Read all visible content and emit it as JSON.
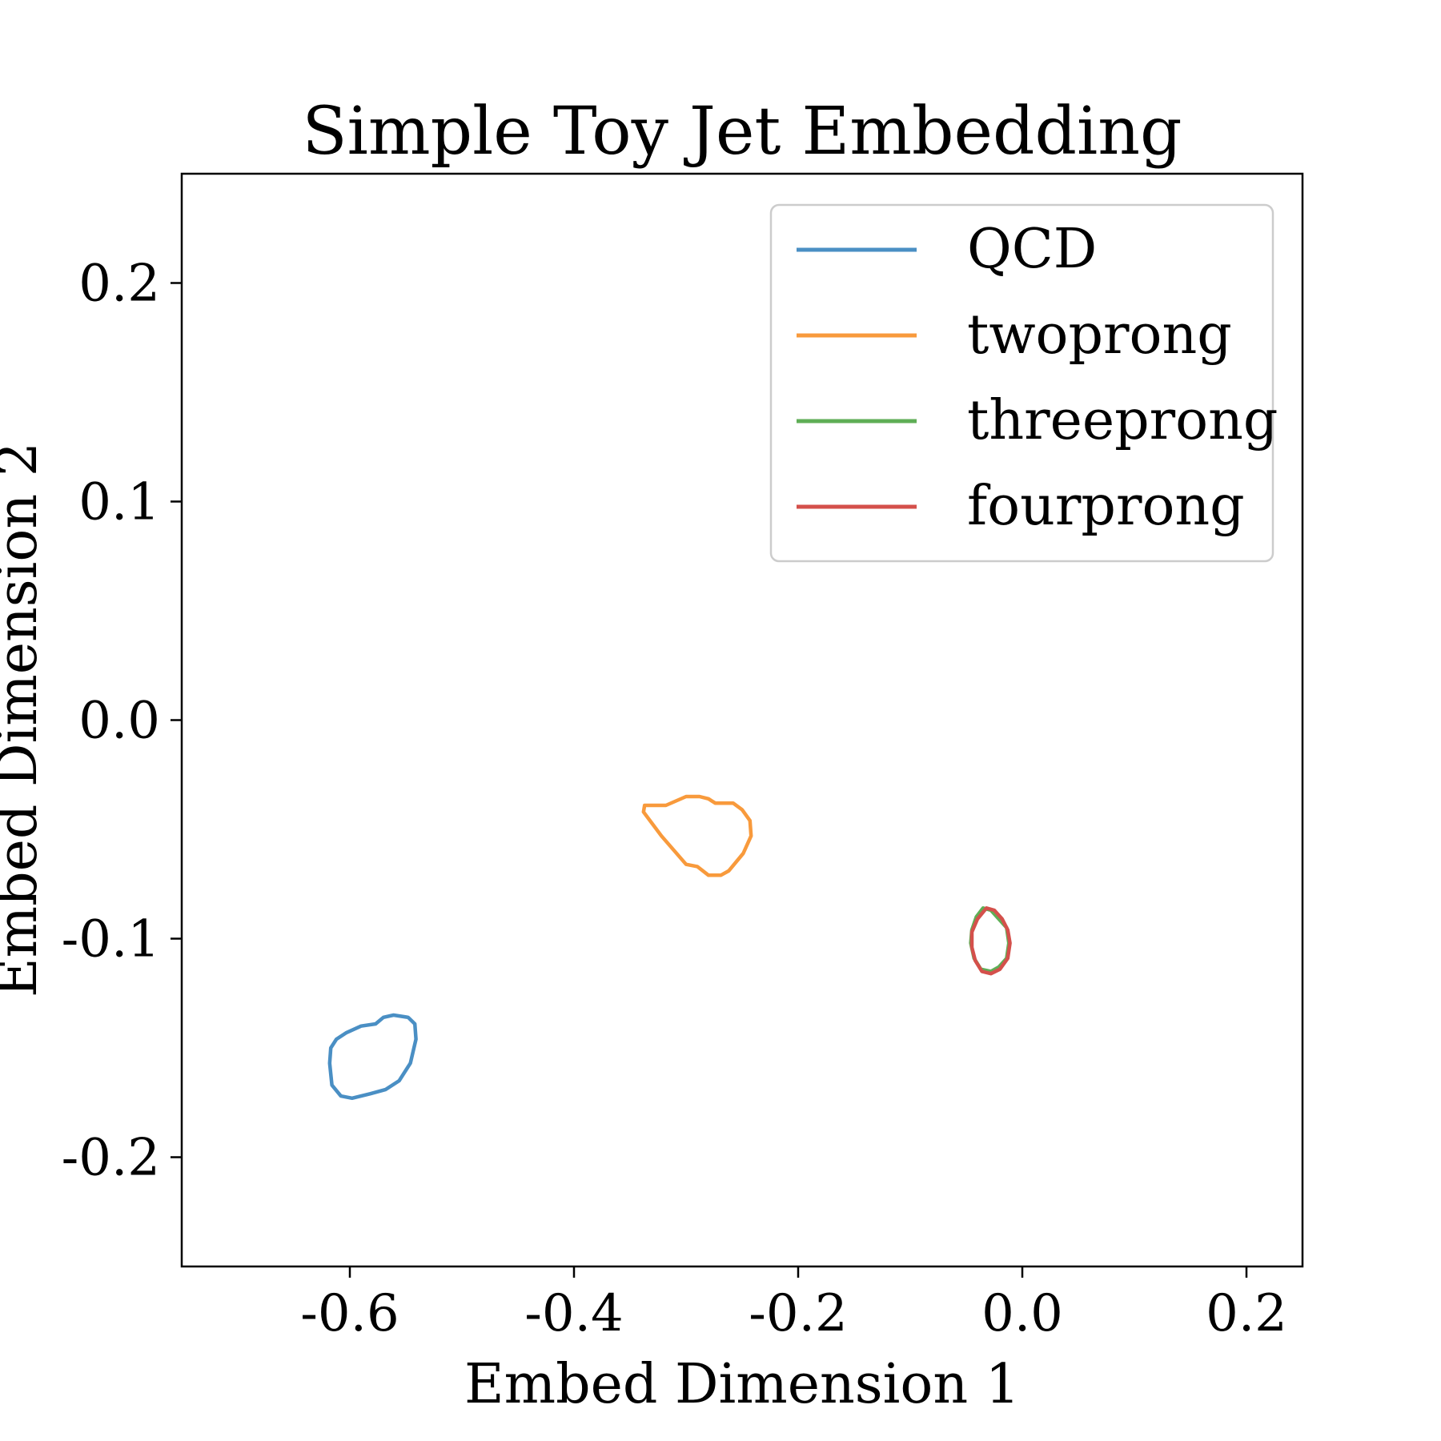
{
  "chart_data": {
    "type": "line",
    "title": "Simple Toy Jet Embedding",
    "xlabel": "Embed Dimension 1",
    "ylabel": "Embed Dimension 2",
    "xlim": [
      -0.75,
      0.25
    ],
    "ylim": [
      -0.25,
      0.25
    ],
    "xticks": [
      -0.6,
      -0.4,
      -0.2,
      0.0,
      0.2
    ],
    "xtick_labels": [
      "-0.6",
      "-0.4",
      "-0.2",
      "0.0",
      "0.2"
    ],
    "yticks": [
      -0.2,
      -0.1,
      0.0,
      0.1,
      0.2
    ],
    "ytick_labels": [
      "-0.2",
      "-0.1",
      "0.0",
      "0.1",
      "0.2"
    ],
    "legend_position": "top-right",
    "grid": false,
    "series": [
      {
        "name": "QCD",
        "color": "#4a8fc4",
        "points": [
          [
            -0.561,
            -0.135
          ],
          [
            -0.548,
            -0.136
          ],
          [
            -0.542,
            -0.139
          ],
          [
            -0.541,
            -0.146
          ],
          [
            -0.546,
            -0.157
          ],
          [
            -0.556,
            -0.165
          ],
          [
            -0.568,
            -0.169
          ],
          [
            -0.582,
            -0.171
          ],
          [
            -0.598,
            -0.173
          ],
          [
            -0.608,
            -0.172
          ],
          [
            -0.616,
            -0.167
          ],
          [
            -0.618,
            -0.157
          ],
          [
            -0.617,
            -0.15
          ],
          [
            -0.612,
            -0.146
          ],
          [
            -0.603,
            -0.143
          ],
          [
            -0.59,
            -0.14
          ],
          [
            -0.577,
            -0.139
          ],
          [
            -0.57,
            -0.136
          ],
          [
            -0.561,
            -0.135
          ]
        ]
      },
      {
        "name": "twoprong",
        "color": "#f89a3c",
        "points": [
          [
            -0.288,
            -0.035
          ],
          [
            -0.28,
            -0.036
          ],
          [
            -0.274,
            -0.038
          ],
          [
            -0.258,
            -0.038
          ],
          [
            -0.25,
            -0.041
          ],
          [
            -0.243,
            -0.046
          ],
          [
            -0.242,
            -0.053
          ],
          [
            -0.249,
            -0.061
          ],
          [
            -0.262,
            -0.069
          ],
          [
            -0.269,
            -0.071
          ],
          [
            -0.28,
            -0.071
          ],
          [
            -0.29,
            -0.067
          ],
          [
            -0.3,
            -0.066
          ],
          [
            -0.322,
            -0.053
          ],
          [
            -0.338,
            -0.042
          ],
          [
            -0.337,
            -0.039
          ],
          [
            -0.318,
            -0.039
          ],
          [
            -0.3,
            -0.035
          ],
          [
            -0.288,
            -0.035
          ]
        ]
      },
      {
        "name": "threeprong",
        "color": "#5fae56",
        "points": [
          [
            -0.035,
            -0.086
          ],
          [
            -0.028,
            -0.087
          ],
          [
            -0.021,
            -0.091
          ],
          [
            -0.014,
            -0.095
          ],
          [
            -0.012,
            -0.102
          ],
          [
            -0.014,
            -0.109
          ],
          [
            -0.021,
            -0.113
          ],
          [
            -0.028,
            -0.115
          ],
          [
            -0.037,
            -0.114
          ],
          [
            -0.043,
            -0.109
          ],
          [
            -0.046,
            -0.102
          ],
          [
            -0.045,
            -0.096
          ],
          [
            -0.041,
            -0.09
          ],
          [
            -0.035,
            -0.086
          ]
        ]
      },
      {
        "name": "fourprong",
        "color": "#d4504b",
        "points": [
          [
            -0.032,
            -0.086
          ],
          [
            -0.025,
            -0.087
          ],
          [
            -0.018,
            -0.091
          ],
          [
            -0.013,
            -0.096
          ],
          [
            -0.011,
            -0.102
          ],
          [
            -0.013,
            -0.109
          ],
          [
            -0.02,
            -0.114
          ],
          [
            -0.028,
            -0.116
          ],
          [
            -0.036,
            -0.115
          ],
          [
            -0.042,
            -0.11
          ],
          [
            -0.045,
            -0.104
          ],
          [
            -0.045,
            -0.097
          ],
          [
            -0.04,
            -0.091
          ],
          [
            -0.032,
            -0.086
          ]
        ]
      }
    ]
  }
}
